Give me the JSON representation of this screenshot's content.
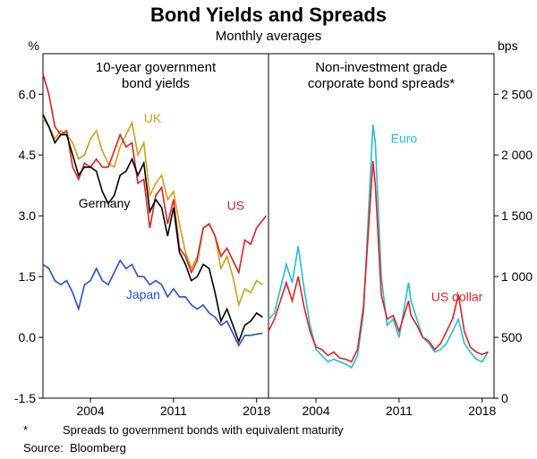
{
  "title": "Bond Yields and Spreads",
  "subtitle": "Monthly averages",
  "title_fontsize": 22,
  "subtitle_fontsize": 15,
  "panel_title_fontsize": 15,
  "footnote_marker": "*",
  "footnote_text": "Spreads to government bonds with equivalent maturity",
  "source_label": "Source:",
  "source_value": "Bloomberg",
  "background_color": "#ffffff",
  "grid_color": "#ffffff",
  "axis_color": "#000000",
  "x_start": 2000,
  "x_end": 2019,
  "x_ticks": [
    2004,
    2011,
    2018
  ],
  "left_panel": {
    "title": "10-year government\nbond yields",
    "y_unit": "%",
    "ylim": [
      -1.5,
      7.0
    ],
    "y_ticks": [
      -1.5,
      0.0,
      1.5,
      3.0,
      4.5,
      6.0
    ],
    "series": {
      "UK": {
        "color": "#c9a215",
        "label_pos": [
          2008.5,
          5.3
        ],
        "data": [
          [
            2000,
            5.4
          ],
          [
            2000.5,
            5.2
          ],
          [
            2001,
            4.9
          ],
          [
            2001.5,
            5.1
          ],
          [
            2002,
            5.0
          ],
          [
            2002.5,
            4.8
          ],
          [
            2003,
            4.4
          ],
          [
            2003.5,
            4.5
          ],
          [
            2004,
            4.9
          ],
          [
            2004.5,
            5.1
          ],
          [
            2005,
            4.6
          ],
          [
            2005.5,
            4.3
          ],
          [
            2006,
            4.2
          ],
          [
            2006.5,
            4.7
          ],
          [
            2007,
            5.0
          ],
          [
            2007.5,
            5.3
          ],
          [
            2008,
            4.5
          ],
          [
            2008.5,
            4.8
          ],
          [
            2009,
            3.5
          ],
          [
            2009.5,
            3.8
          ],
          [
            2010,
            4.0
          ],
          [
            2010.5,
            3.4
          ],
          [
            2011,
            3.6
          ],
          [
            2011.5,
            2.8
          ],
          [
            2012,
            2.1
          ],
          [
            2012.5,
            1.7
          ],
          [
            2013,
            2.0
          ],
          [
            2013.5,
            2.7
          ],
          [
            2014,
            2.8
          ],
          [
            2014.5,
            2.5
          ],
          [
            2015,
            1.7
          ],
          [
            2015.5,
            2.0
          ],
          [
            2016,
            1.5
          ],
          [
            2016.5,
            0.8
          ],
          [
            2017,
            1.2
          ],
          [
            2017.5,
            1.1
          ],
          [
            2018,
            1.4
          ],
          [
            2018.5,
            1.3
          ]
        ]
      },
      "US": {
        "color": "#e02020",
        "label_pos": [
          2015.5,
          3.15
        ],
        "data": [
          [
            2000,
            6.5
          ],
          [
            2000.5,
            6.0
          ],
          [
            2001,
            5.2
          ],
          [
            2001.5,
            5.0
          ],
          [
            2002,
            5.1
          ],
          [
            2002.5,
            4.2
          ],
          [
            2003,
            3.9
          ],
          [
            2003.5,
            4.3
          ],
          [
            2004,
            4.2
          ],
          [
            2004.5,
            4.4
          ],
          [
            2005,
            4.2
          ],
          [
            2005.5,
            4.2
          ],
          [
            2006,
            4.6
          ],
          [
            2006.5,
            5.0
          ],
          [
            2007,
            4.7
          ],
          [
            2007.5,
            4.8
          ],
          [
            2008,
            3.8
          ],
          [
            2008.5,
            3.9
          ],
          [
            2009,
            2.7
          ],
          [
            2009.5,
            3.5
          ],
          [
            2010,
            3.7
          ],
          [
            2010.5,
            2.8
          ],
          [
            2011,
            3.4
          ],
          [
            2011.5,
            2.2
          ],
          [
            2012,
            2.0
          ],
          [
            2012.5,
            1.6
          ],
          [
            2013,
            1.9
          ],
          [
            2013.5,
            2.7
          ],
          [
            2014,
            2.8
          ],
          [
            2014.5,
            2.5
          ],
          [
            2015,
            2.0
          ],
          [
            2015.5,
            2.2
          ],
          [
            2016,
            1.9
          ],
          [
            2016.5,
            1.6
          ],
          [
            2017,
            2.4
          ],
          [
            2017.5,
            2.3
          ],
          [
            2018,
            2.7
          ],
          [
            2018.8,
            3.0
          ]
        ]
      },
      "Germany": {
        "color": "#000000",
        "label_pos": [
          2003,
          3.2
        ],
        "data": [
          [
            2000,
            5.5
          ],
          [
            2000.5,
            5.2
          ],
          [
            2001,
            4.8
          ],
          [
            2001.5,
            5.0
          ],
          [
            2002,
            5.0
          ],
          [
            2002.5,
            4.5
          ],
          [
            2003,
            4.0
          ],
          [
            2003.5,
            4.2
          ],
          [
            2004,
            4.2
          ],
          [
            2004.5,
            4.1
          ],
          [
            2005,
            3.6
          ],
          [
            2005.5,
            3.3
          ],
          [
            2006,
            3.5
          ],
          [
            2006.5,
            4.0
          ],
          [
            2007,
            4.1
          ],
          [
            2007.5,
            4.4
          ],
          [
            2008,
            4.0
          ],
          [
            2008.5,
            4.3
          ],
          [
            2009,
            3.1
          ],
          [
            2009.5,
            3.4
          ],
          [
            2010,
            3.2
          ],
          [
            2010.5,
            2.5
          ],
          [
            2011,
            3.2
          ],
          [
            2011.5,
            2.1
          ],
          [
            2012,
            1.8
          ],
          [
            2012.5,
            1.4
          ],
          [
            2013,
            1.5
          ],
          [
            2013.5,
            1.8
          ],
          [
            2014,
            1.7
          ],
          [
            2014.5,
            1.1
          ],
          [
            2015,
            0.4
          ],
          [
            2015.5,
            0.7
          ],
          [
            2016,
            0.3
          ],
          [
            2016.5,
            -0.1
          ],
          [
            2017,
            0.3
          ],
          [
            2017.5,
            0.4
          ],
          [
            2018,
            0.6
          ],
          [
            2018.5,
            0.5
          ]
        ]
      },
      "Japan": {
        "color": "#2050d0",
        "label_pos": [
          2007,
          0.95
        ],
        "data": [
          [
            2000,
            1.8
          ],
          [
            2000.5,
            1.7
          ],
          [
            2001,
            1.4
          ],
          [
            2001.5,
            1.3
          ],
          [
            2002,
            1.4
          ],
          [
            2002.5,
            1.1
          ],
          [
            2003,
            0.7
          ],
          [
            2003.5,
            1.3
          ],
          [
            2004,
            1.4
          ],
          [
            2004.5,
            1.7
          ],
          [
            2005,
            1.4
          ],
          [
            2005.5,
            1.3
          ],
          [
            2006,
            1.6
          ],
          [
            2006.5,
            1.9
          ],
          [
            2007,
            1.7
          ],
          [
            2007.5,
            1.8
          ],
          [
            2008,
            1.5
          ],
          [
            2008.5,
            1.5
          ],
          [
            2009,
            1.3
          ],
          [
            2009.5,
            1.4
          ],
          [
            2010,
            1.3
          ],
          [
            2010.5,
            1.0
          ],
          [
            2011,
            1.2
          ],
          [
            2011.5,
            1.0
          ],
          [
            2012,
            1.0
          ],
          [
            2012.5,
            0.8
          ],
          [
            2013,
            0.7
          ],
          [
            2013.5,
            0.8
          ],
          [
            2014,
            0.6
          ],
          [
            2014.5,
            0.5
          ],
          [
            2015,
            0.3
          ],
          [
            2015.5,
            0.4
          ],
          [
            2016,
            0.1
          ],
          [
            2016.5,
            -0.2
          ],
          [
            2017,
            0.05
          ],
          [
            2017.5,
            0.05
          ],
          [
            2018,
            0.08
          ],
          [
            2018.5,
            0.1
          ]
        ]
      }
    }
  },
  "right_panel": {
    "title": "Non-investment grade\ncorporate bond spreads*",
    "y_unit": "bps",
    "ylim": [
      0,
      2833
    ],
    "y_ticks": [
      0,
      500,
      1000,
      1500,
      2000,
      2500
    ],
    "series": {
      "Euro": {
        "color": "#20c0d0",
        "label_pos": [
          2010.3,
          2100
        ],
        "data": [
          [
            2000,
            650
          ],
          [
            2000.5,
            700
          ],
          [
            2001,
            900
          ],
          [
            2001.5,
            1100
          ],
          [
            2002,
            950
          ],
          [
            2002.5,
            1250
          ],
          [
            2003,
            900
          ],
          [
            2003.5,
            600
          ],
          [
            2004,
            400
          ],
          [
            2004.5,
            350
          ],
          [
            2005,
            300
          ],
          [
            2005.5,
            320
          ],
          [
            2006,
            300
          ],
          [
            2006.5,
            280
          ],
          [
            2007,
            250
          ],
          [
            2007.5,
            350
          ],
          [
            2008,
            700
          ],
          [
            2008.8,
            2250
          ],
          [
            2009,
            2100
          ],
          [
            2009.5,
            1000
          ],
          [
            2010,
            600
          ],
          [
            2010.5,
            650
          ],
          [
            2011,
            500
          ],
          [
            2011.8,
            950
          ],
          [
            2012,
            800
          ],
          [
            2012.5,
            650
          ],
          [
            2013,
            500
          ],
          [
            2013.5,
            450
          ],
          [
            2014,
            380
          ],
          [
            2014.5,
            400
          ],
          [
            2015,
            450
          ],
          [
            2015.5,
            550
          ],
          [
            2016,
            650
          ],
          [
            2016.5,
            450
          ],
          [
            2017,
            380
          ],
          [
            2017.5,
            320
          ],
          [
            2018,
            300
          ],
          [
            2018.5,
            380
          ]
        ]
      },
      "US dollar": {
        "color": "#e02020",
        "label_pos": [
          2013.7,
          800
        ],
        "data": [
          [
            2000,
            550
          ],
          [
            2000.5,
            650
          ],
          [
            2001,
            800
          ],
          [
            2001.5,
            950
          ],
          [
            2002,
            800
          ],
          [
            2002.5,
            1000
          ],
          [
            2003,
            750
          ],
          [
            2003.5,
            550
          ],
          [
            2004,
            420
          ],
          [
            2004.5,
            400
          ],
          [
            2005,
            350
          ],
          [
            2005.5,
            380
          ],
          [
            2006,
            330
          ],
          [
            2006.5,
            320
          ],
          [
            2007,
            300
          ],
          [
            2007.5,
            400
          ],
          [
            2008,
            750
          ],
          [
            2008.8,
            1950
          ],
          [
            2009,
            1750
          ],
          [
            2009.5,
            850
          ],
          [
            2010,
            650
          ],
          [
            2010.5,
            680
          ],
          [
            2011,
            550
          ],
          [
            2011.8,
            800
          ],
          [
            2012,
            680
          ],
          [
            2012.5,
            600
          ],
          [
            2013,
            500
          ],
          [
            2013.5,
            470
          ],
          [
            2014,
            400
          ],
          [
            2014.5,
            450
          ],
          [
            2015,
            550
          ],
          [
            2015.5,
            650
          ],
          [
            2016,
            850
          ],
          [
            2016.5,
            550
          ],
          [
            2017,
            420
          ],
          [
            2017.5,
            380
          ],
          [
            2018,
            360
          ],
          [
            2018.5,
            380
          ]
        ]
      }
    }
  }
}
